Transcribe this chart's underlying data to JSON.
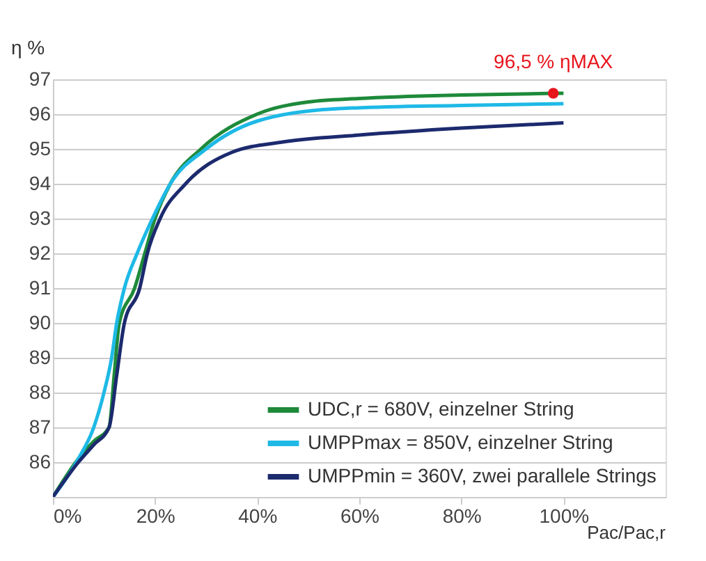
{
  "chart_data": {
    "type": "line",
    "ylabel": "η %",
    "xlabel": "Pac/Pac,r",
    "xlim": [
      0,
      120
    ],
    "ylim": [
      85,
      97
    ],
    "xticks": [
      {
        "value": 0,
        "label": "0%"
      },
      {
        "value": 20,
        "label": "20%"
      },
      {
        "value": 40,
        "label": "40%"
      },
      {
        "value": 60,
        "label": "60%"
      },
      {
        "value": 80,
        "label": "80%"
      },
      {
        "value": 100,
        "label": "100%"
      }
    ],
    "yticks": [
      {
        "value": 85,
        "label": null
      },
      86,
      87,
      88,
      89,
      90,
      91,
      92,
      93,
      94,
      95,
      96,
      97
    ],
    "grid": "y",
    "legend": "bottom right",
    "marker": "none",
    "line_style": "solid",
    "series": [
      {
        "name": "UDC,r = 680V, einzelner String",
        "color": "#1e8a3a",
        "x": [
          0,
          5,
          8,
          11,
          12,
          13,
          16,
          18,
          20,
          23,
          29,
          40,
          50,
          60,
          80,
          100
        ],
        "values": [
          85,
          86.1,
          86.6,
          87,
          88.5,
          90,
          91,
          92,
          93,
          94,
          95,
          96,
          96.35,
          96.45,
          96.55,
          96.6
        ]
      },
      {
        "name": "UMPPmax = 850V, einzelner String",
        "color": "#1eb9e6",
        "x": [
          0,
          5,
          8,
          10,
          11.5,
          12.5,
          14,
          16.5,
          19.5,
          23,
          30,
          40,
          55,
          80,
          100
        ],
        "values": [
          85,
          86.1,
          87,
          88,
          89,
          90,
          91,
          92,
          93,
          94,
          95,
          95.8,
          96.15,
          96.25,
          96.3
        ]
      },
      {
        "name": "UMPPmin = 360V, zwei parallele Strings",
        "color": "#1c2a6e",
        "x": [
          0,
          5,
          8,
          11,
          12.5,
          14,
          17,
          18.5,
          21,
          26,
          35,
          45,
          60,
          80,
          100
        ],
        "values": [
          85,
          86,
          86.5,
          87,
          88.5,
          90,
          91,
          92,
          93,
          94,
          94.9,
          95.2,
          95.4,
          95.6,
          95.75
        ]
      }
    ],
    "annotations": [
      {
        "text": "96,5 % ηMAX",
        "x": 98,
        "y": 96.6
      }
    ]
  }
}
